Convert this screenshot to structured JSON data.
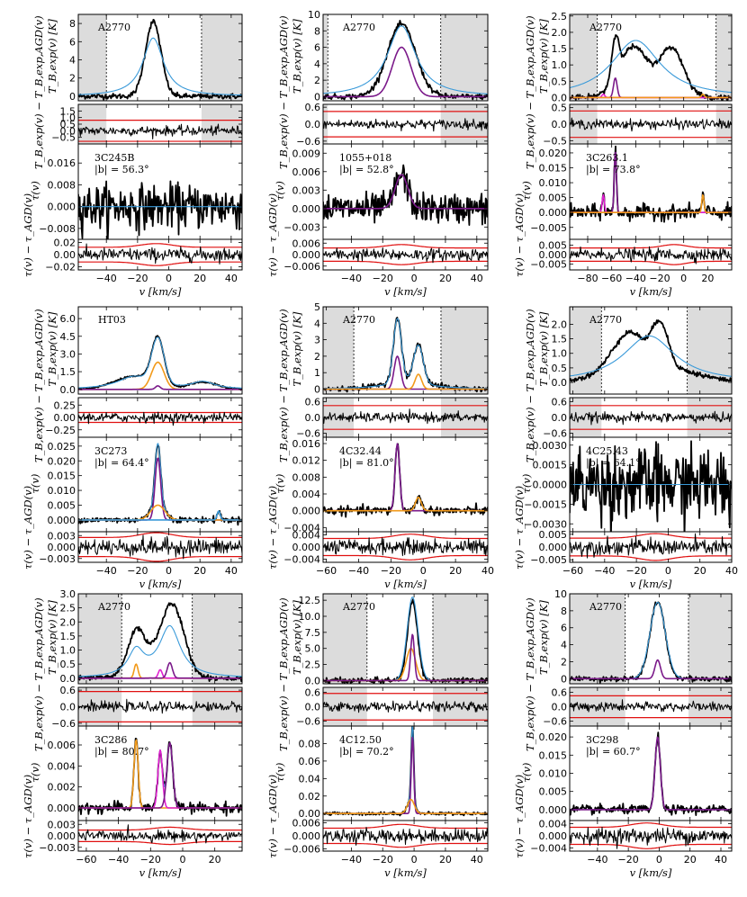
{
  "figure_type": "multi-panel spectral line plot",
  "colors": {
    "data": "#000000",
    "model": "#3a9ad9",
    "purple": "#7b1a8a",
    "orange": "#f29a1a",
    "magenta": "#e020d0",
    "residual_bound": "#e01010",
    "mask_fill": "#dcdcdc"
  },
  "labels": {
    "tb_ylabel": "T_B,exp(v) [K]",
    "tb_res_ylabel": "T_B,exp(v) − T_B,exp,AGD(v)",
    "tau_ylabel": "τ(v)",
    "tau_res_ylabel": "τ(v) − τ_AGD(v)",
    "xlabel": "v [km/s]"
  },
  "chart_data": [
    {
      "type": "line",
      "panel": 1,
      "emission_label": "A2770",
      "source": "3C245B",
      "lat": "|b| = 56.3°",
      "xlim": [
        -58,
        47
      ],
      "xticks": [
        -40,
        -20,
        0,
        20,
        40
      ],
      "mask_bounds": [
        -40,
        21
      ],
      "tb": {
        "ylim": [
          -0.5,
          9
        ],
        "yticks": [
          0,
          2,
          4,
          6,
          8
        ],
        "components": [
          {
            "center": -10,
            "width": 8,
            "amp": 6.4,
            "color": "model",
            "profile": "wide"
          }
        ],
        "data_comps": [
          {
            "center": -10,
            "width": 5,
            "amp": 8.2
          }
        ]
      },
      "tb_res": {
        "ylim": [
          -1,
          2
        ],
        "yticks": [
          1.5,
          1.0,
          0.5,
          0.0,
          -0.5
        ],
        "bound": [
          -0.8,
          0.8
        ]
      },
      "tau": {
        "ylim": [
          -0.012,
          0.023
        ],
        "yticks": [
          0.016,
          0.008,
          0.0,
          -0.008
        ],
        "components": [],
        "noise": 0.004
      },
      "tau_res": {
        "ylim": [
          -0.025,
          0.025
        ],
        "yticks": [
          0.02,
          0.0,
          -0.02
        ],
        "bound": 0.012
      }
    },
    {
      "type": "line",
      "panel": 2,
      "emission_label": "A2770",
      "source": "1055+018",
      "lat": "|b| = 52.8°",
      "xlim": [
        -58,
        47
      ],
      "xticks": [
        -40,
        -20,
        0,
        20,
        40
      ],
      "mask_bounds": [
        -55,
        17
      ],
      "tb": {
        "ylim": [
          -0.5,
          10
        ],
        "yticks": [
          0,
          2,
          4,
          6,
          8,
          10
        ],
        "components": [
          {
            "center": -8,
            "width": 6,
            "amp": 6.0,
            "color": "purple"
          },
          {
            "center": -8,
            "width": 11,
            "amp": 8.6,
            "color": "model",
            "profile": "wide"
          }
        ],
        "data_comps": [
          {
            "center": -8,
            "width": 9,
            "amp": 8.8
          }
        ]
      },
      "tb_res": {
        "ylim": [
          -0.7,
          0.7
        ],
        "yticks": [
          0.6,
          0.0,
          -0.6
        ],
        "bound": 0.45
      },
      "tau": {
        "ylim": [
          -0.005,
          0.0105
        ],
        "yticks": [
          0.009,
          0.006,
          0.003,
          0.0,
          -0.003
        ],
        "components": [
          {
            "center": -8,
            "width": 4,
            "amp": 0.0055,
            "color": "purple"
          }
        ],
        "noise": 0.0012
      },
      "tau_res": {
        "ylim": [
          -0.008,
          0.008
        ],
        "yticks": [
          0.006,
          0.0,
          -0.006
        ],
        "bound": 0.0035
      }
    },
    {
      "type": "line",
      "panel": 3,
      "emission_label": "A2770",
      "source": "3C263.1",
      "lat": "|b| = 73.8°",
      "xlim": [
        -95,
        40
      ],
      "xticks": [
        -80,
        -60,
        -40,
        -20,
        0,
        20
      ],
      "mask_bounds": [
        -72,
        27
      ],
      "tb": {
        "ylim": [
          -0.1,
          2.55
        ],
        "yticks": [
          0.0,
          0.5,
          1.0,
          1.5,
          2.0,
          2.5
        ],
        "components": [
          {
            "center": -57,
            "width": 1.5,
            "amp": 0.6,
            "color": "purple"
          },
          {
            "center": -67,
            "width": 1.2,
            "amp": 0.1,
            "color": "magenta"
          },
          {
            "center": 16,
            "width": 1.2,
            "amp": 0.1,
            "color": "orange"
          },
          {
            "center": -40,
            "width": 25,
            "amp": 1.75,
            "color": "model",
            "profile": "wide"
          }
        ],
        "data_comps": [
          {
            "center": -57,
            "width": 3,
            "amp": 1.2
          },
          {
            "center": -42,
            "width": 12,
            "amp": 1.55
          },
          {
            "center": -10,
            "width": 10,
            "amp": 1.5
          }
        ]
      },
      "tb_res": {
        "ylim": [
          -0.6,
          0.6
        ],
        "yticks": [
          0.5,
          0.0,
          -0.5
        ],
        "bound": 0.4
      },
      "tau": {
        "ylim": [
          -0.009,
          0.023
        ],
        "yticks": [
          0.02,
          0.015,
          0.01,
          0.005,
          0.0,
          -0.005
        ],
        "components": [
          {
            "center": -57,
            "width": 0.9,
            "amp": 0.021,
            "color": "purple"
          },
          {
            "center": -67,
            "width": 0.9,
            "amp": 0.006,
            "color": "magenta"
          },
          {
            "center": 16,
            "width": 0.9,
            "amp": 0.006,
            "color": "orange"
          }
        ],
        "noise": 0.0012
      },
      "tau_res": {
        "ylim": [
          -0.008,
          0.008
        ],
        "yticks": [
          0.005,
          0.0,
          -0.005
        ],
        "bound": 0.0035
      }
    },
    {
      "type": "line",
      "panel": 4,
      "emission_label": "HT03",
      "source": "3C273",
      "lat": "|b| = 64.4°",
      "xlim": [
        -58,
        47
      ],
      "xticks": [
        -40,
        -20,
        0,
        20,
        40
      ],
      "mask_bounds": null,
      "tb": {
        "ylim": [
          -0.4,
          7
        ],
        "yticks": [
          0.0,
          1.5,
          3.0,
          4.5,
          6.0
        ],
        "components": [
          {
            "center": -7,
            "width": 4,
            "amp": 2.3,
            "color": "orange"
          },
          {
            "center": -7,
            "width": 1.5,
            "amp": 0.3,
            "color": "purple"
          },
          {
            "center": -7,
            "width": 4,
            "amp": 3.9,
            "color": "model",
            "profile": "narrow"
          },
          {
            "center": -22,
            "width": 13,
            "amp": 1.1,
            "color": "model",
            "profile": "wide"
          },
          {
            "center": 22,
            "width": 9,
            "amp": 0.6,
            "color": "model",
            "profile": "wide"
          }
        ],
        "data_comps": [
          {
            "center": -7,
            "width": 4,
            "amp": 3.9
          },
          {
            "center": -22,
            "width": 13,
            "amp": 1.1
          },
          {
            "center": 22,
            "width": 9,
            "amp": 0.6
          }
        ],
        "data_noise": 0.02
      },
      "tb_res": {
        "ylim": [
          -0.4,
          0.4
        ],
        "yticks": [
          0.25,
          0.0,
          -0.25
        ],
        "bound": 0.1
      },
      "tau": {
        "ylim": [
          -0.004,
          0.028
        ],
        "yticks": [
          0.025,
          0.02,
          0.015,
          0.01,
          0.005,
          0.0
        ],
        "components": [
          {
            "center": -7,
            "width": 1.8,
            "amp": 0.021,
            "color": "purple"
          },
          {
            "center": -7,
            "width": 4.5,
            "amp": 0.005,
            "color": "orange"
          },
          {
            "center": 32,
            "width": 1,
            "amp": 0.003,
            "color": "model"
          }
        ],
        "noise": 0.0005
      },
      "tau_res": {
        "ylim": [
          -0.004,
          0.004
        ],
        "yticks": [
          0.003,
          0.0,
          -0.003
        ],
        "bound": 0.0025
      }
    },
    {
      "type": "line",
      "panel": 5,
      "emission_label": "A2770",
      "source": "4C32.44",
      "lat": "|b| = 81.0°",
      "xlim": [
        -62,
        40
      ],
      "xticks": [
        -60,
        -40,
        -20,
        0,
        20,
        40
      ],
      "mask_bounds": [
        -43,
        11
      ],
      "tb": {
        "ylim": [
          -0.3,
          5
        ],
        "yticks": [
          0,
          1,
          2,
          3,
          4,
          5
        ],
        "components": [
          {
            "center": -16,
            "width": 2,
            "amp": 2.0,
            "color": "purple"
          },
          {
            "center": -3,
            "width": 2,
            "amp": 0.9,
            "color": "orange"
          },
          {
            "center": -16,
            "width": 2.5,
            "amp": 3.9,
            "color": "model",
            "profile": "narrow"
          },
          {
            "center": -3,
            "width": 3,
            "amp": 2.3,
            "color": "model",
            "profile": "narrow"
          },
          {
            "center": -10,
            "width": 16,
            "amp": 0.45,
            "color": "model",
            "profile": "wide"
          }
        ],
        "data_comps": [
          {
            "center": -16,
            "width": 2.5,
            "amp": 3.9
          },
          {
            "center": -3,
            "width": 3,
            "amp": 2.3
          },
          {
            "center": -10,
            "width": 16,
            "amp": 0.45
          }
        ]
      },
      "tb_res": {
        "ylim": [
          -0.75,
          0.75
        ],
        "yticks": [
          0.6,
          0.0,
          -0.6
        ],
        "bound": 0.45
      },
      "tau": {
        "ylim": [
          -0.005,
          0.0175
        ],
        "yticks": [
          0.016,
          0.012,
          0.008,
          0.004,
          0.0,
          -0.004
        ],
        "components": [
          {
            "center": -16,
            "width": 1.4,
            "amp": 0.016,
            "color": "purple"
          },
          {
            "center": -3,
            "width": 1.8,
            "amp": 0.0032,
            "color": "orange"
          }
        ],
        "noise": 0.0005
      },
      "tau_res": {
        "ylim": [
          -0.005,
          0.005
        ],
        "yticks": [
          0.004,
          0.0,
          -0.004
        ],
        "bound": 0.0028
      }
    },
    {
      "type": "line",
      "panel": 6,
      "emission_label": "A2770",
      "source": "4C25.43",
      "lat": "|b| = 64.1°",
      "xlim": [
        -62,
        40
      ],
      "xticks": [
        -60,
        -40,
        -20,
        0,
        20,
        40
      ],
      "mask_bounds": [
        -42,
        12
      ],
      "tb": {
        "ylim": [
          -0.4,
          2.6
        ],
        "yticks": [
          0.0,
          0.5,
          1.0,
          1.5,
          2.0
        ],
        "components": [
          {
            "center": -12,
            "width": 20,
            "amp": 1.6,
            "color": "model",
            "profile": "wide"
          }
        ],
        "data_comps": [
          {
            "center": -25,
            "width": 10,
            "amp": 1.2
          },
          {
            "center": -5,
            "width": 5,
            "amp": 1.4
          },
          {
            "center": -12,
            "width": 25,
            "amp": 0.6
          }
        ]
      },
      "tb_res": {
        "ylim": [
          -0.75,
          0.75
        ],
        "yticks": [
          0.6,
          0.0,
          -0.6
        ],
        "bound": 0.45
      },
      "tau": {
        "ylim": [
          -0.0036,
          0.0036
        ],
        "yticks": [
          0.003,
          0.0015,
          0.0,
          -0.0015,
          -0.003
        ],
        "components": [],
        "noise": 0.0014
      },
      "tau_res": {
        "ylim": [
          -0.006,
          0.006
        ],
        "yticks": [
          0.005,
          0.0,
          -0.005
        ],
        "bound": 0.0035
      }
    },
    {
      "type": "line",
      "panel": 7,
      "emission_label": "A2770",
      "source": "3C286",
      "lat": "|b| = 80.7°",
      "xlim": [
        -65,
        37
      ],
      "xticks": [
        -60,
        -40,
        -20,
        0,
        20
      ],
      "mask_bounds": [
        -38,
        6
      ],
      "tb": {
        "ylim": [
          -0.2,
          3.0
        ],
        "yticks": [
          0.0,
          0.5,
          1.0,
          1.5,
          2.0,
          2.5,
          3.0
        ],
        "components": [
          {
            "center": -29,
            "width": 1.2,
            "amp": 0.5,
            "color": "orange"
          },
          {
            "center": -14,
            "width": 1.2,
            "amp": 0.3,
            "color": "magenta"
          },
          {
            "center": -8,
            "width": 1.6,
            "amp": 0.55,
            "color": "purple"
          },
          {
            "center": -8,
            "width": 8,
            "amp": 1.8,
            "color": "model",
            "profile": "wide"
          },
          {
            "center": -29,
            "width": 6,
            "amp": 0.9,
            "color": "model",
            "profile": "wide"
          }
        ],
        "data_comps": [
          {
            "center": -29,
            "width": 5,
            "amp": 1.3
          },
          {
            "center": -6,
            "width": 7,
            "amp": 2.2
          },
          {
            "center": -18,
            "width": 12,
            "amp": 0.7
          }
        ]
      },
      "tb_res": {
        "ylim": [
          -0.7,
          0.7
        ],
        "yticks": [
          0.6,
          0.0,
          -0.6
        ],
        "bound": 0.55
      },
      "tau": {
        "ylim": [
          -0.0012,
          0.0078
        ],
        "yticks": [
          0.006,
          0.004,
          0.002,
          0.0
        ],
        "components": [
          {
            "center": -29,
            "width": 1.3,
            "amp": 0.0065,
            "color": "orange"
          },
          {
            "center": -14,
            "width": 1.4,
            "amp": 0.0055,
            "color": "magenta"
          },
          {
            "center": -8,
            "width": 1.8,
            "amp": 0.0062,
            "color": "purple"
          }
        ],
        "noise": 0.00025
      },
      "tau_res": {
        "ylim": [
          -0.004,
          0.004
        ],
        "yticks": [
          0.003,
          0.0,
          -0.003
        ],
        "bound": 0.0015
      }
    },
    {
      "type": "line",
      "panel": 8,
      "emission_label": "A2770",
      "source": "4C12.50",
      "lat": "|b| = 70.2°",
      "xlim": [
        -58,
        47
      ],
      "xticks": [
        -40,
        -20,
        0,
        20,
        40
      ],
      "mask_bounds": [
        -30,
        12
      ],
      "tb": {
        "ylim": [
          -0.5,
          13.5
        ],
        "yticks": [
          0.0,
          2.5,
          5.0,
          7.5,
          10.0,
          12.5
        ],
        "components": [
          {
            "center": -2,
            "width": 3,
            "amp": 5.0,
            "color": "orange"
          },
          {
            "center": -1,
            "width": 1.2,
            "amp": 7.2,
            "color": "purple"
          },
          {
            "center": -1,
            "width": 3.5,
            "amp": 13.0,
            "color": "model",
            "profile": "narrow"
          }
        ],
        "data_comps": [
          {
            "center": -1,
            "width": 3.2,
            "amp": 12.4
          }
        ]
      },
      "tb_res": {
        "ylim": [
          -0.8,
          0.8
        ],
        "yticks": [
          0.6,
          0.0,
          -0.6
        ],
        "bound": 0.55
      },
      "tau": {
        "ylim": [
          -0.008,
          0.1
        ],
        "yticks": [
          0.08,
          0.06,
          0.04,
          0.02,
          0.0
        ],
        "components": [
          {
            "center": -1,
            "width": 0.8,
            "amp": 0.088,
            "color": "purple"
          },
          {
            "center": -2,
            "width": 2.2,
            "amp": 0.016,
            "color": "orange"
          }
        ],
        "noise": 0.0009
      },
      "tau_res": {
        "ylim": [
          -0.007,
          0.007
        ],
        "yticks": [
          0.006,
          0.0,
          -0.006
        ],
        "bound": 0.0035
      }
    },
    {
      "type": "line",
      "panel": 9,
      "emission_label": "A2770",
      "source": "3C298",
      "lat": "|b| = 60.7°",
      "xlim": [
        -58,
        47
      ],
      "xticks": [
        -40,
        -20,
        0,
        20,
        40
      ],
      "mask_bounds": [
        -22,
        19
      ],
      "tb": {
        "ylim": [
          -0.6,
          10
        ],
        "yticks": [
          0,
          2,
          4,
          6,
          8,
          10
        ],
        "components": [
          {
            "center": -1,
            "width": 1.8,
            "amp": 2.2,
            "color": "purple"
          },
          {
            "center": -1,
            "width": 5,
            "amp": 9.0,
            "color": "model",
            "profile": "narrow"
          }
        ],
        "data_comps": [
          {
            "center": -1,
            "width": 4.8,
            "amp": 9.1
          }
        ]
      },
      "tb_res": {
        "ylim": [
          -0.8,
          0.8
        ],
        "yticks": [
          0.6,
          0.0,
          -0.6
        ],
        "bound": 0.45
      },
      "tau": {
        "ylim": [
          -0.003,
          0.023
        ],
        "yticks": [
          0.02,
          0.015,
          0.01,
          0.005,
          0.0
        ],
        "components": [
          {
            "center": -1,
            "width": 1.7,
            "amp": 0.02,
            "color": "purple"
          }
        ],
        "noise": 0.0006
      },
      "tau_res": {
        "ylim": [
          -0.005,
          0.005
        ],
        "yticks": [
          0.004,
          0.0,
          -0.004
        ],
        "bound": 0.0028
      }
    }
  ]
}
